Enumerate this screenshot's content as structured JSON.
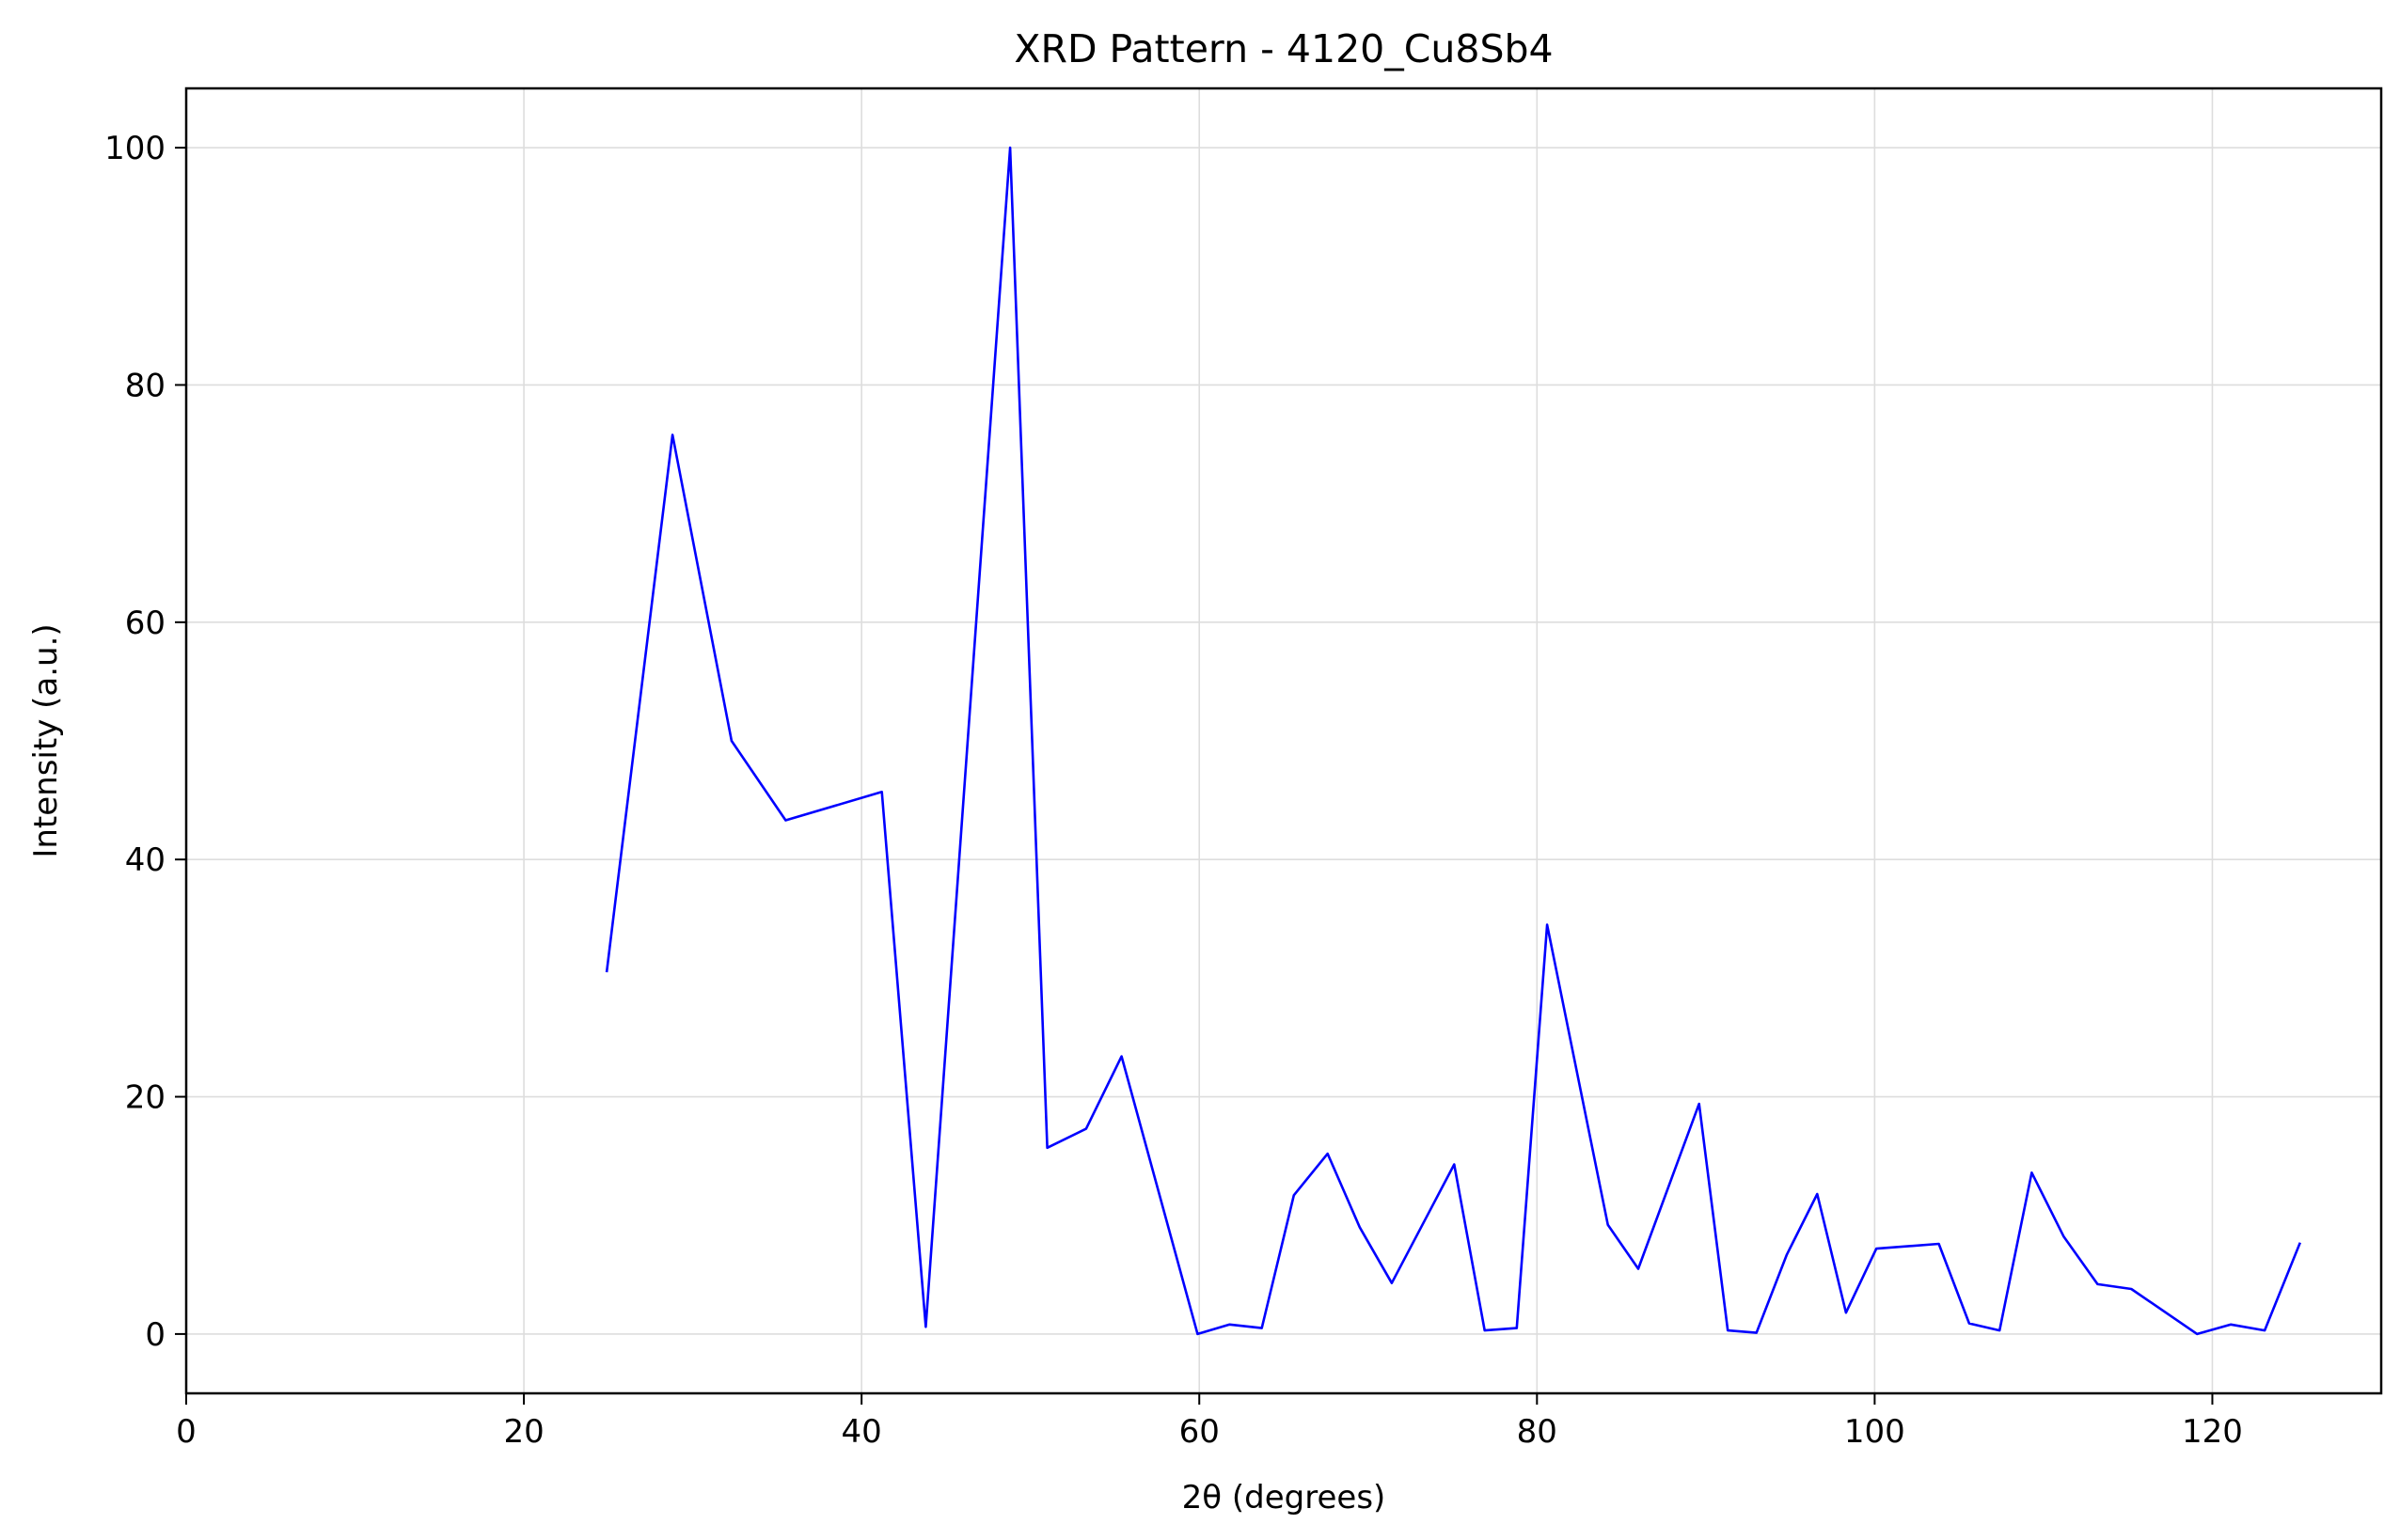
{
  "chart_data": {
    "type": "line",
    "title": "XRD Pattern - 4120_Cu8Sb4",
    "xlabel": "2θ (degrees)",
    "ylabel": "Intensity (a.u.)",
    "xlim": [
      0,
      130
    ],
    "ylim": [
      -5,
      105
    ],
    "xticks": [
      0,
      20,
      40,
      60,
      80,
      100,
      120
    ],
    "yticks": [
      0,
      20,
      40,
      60,
      80,
      100
    ],
    "grid": true,
    "legend": "none",
    "colors": {
      "line": "#0000ff",
      "grid": "#dddddd",
      "axes": "#000000",
      "background": "#ffffff"
    },
    "series": [
      {
        "x": [
          24.9,
          28.8,
          32.3,
          35.5,
          41.2,
          43.8,
          48.8,
          51.0,
          53.3,
          55.4,
          59.9,
          61.8,
          63.7,
          65.6,
          67.6,
          69.5,
          71.4,
          75.1,
          76.9,
          78.8,
          80.6,
          84.2,
          86.0,
          89.6,
          91.3,
          93.0,
          94.8,
          96.6,
          98.3,
          100.1,
          103.8,
          105.6,
          107.4,
          109.3,
          111.2,
          113.2,
          115.2,
          119.1,
          121.1,
          123.1,
          125.2
        ],
        "y": [
          30.5,
          75.8,
          50.0,
          43.3,
          45.7,
          0.6,
          100.0,
          15.7,
          17.3,
          23.4,
          0.0,
          0.8,
          0.5,
          11.7,
          15.2,
          9.0,
          4.3,
          14.3,
          0.3,
          0.5,
          34.5,
          9.2,
          5.5,
          19.4,
          0.3,
          0.1,
          6.7,
          11.8,
          1.8,
          7.2,
          7.6,
          0.9,
          0.3,
          13.6,
          8.2,
          4.2,
          3.8,
          0.0,
          0.8,
          0.3,
          7.7
        ]
      }
    ]
  }
}
